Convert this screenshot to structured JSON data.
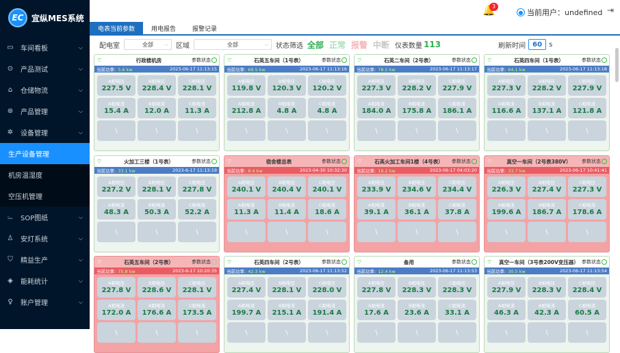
{
  "app": {
    "title": "宜纵MES系统",
    "logo_text": "EC"
  },
  "sidebar": {
    "items": [
      {
        "label": "车间看板",
        "icon": "monitor-icon",
        "glyph": "▭"
      },
      {
        "label": "产品测试",
        "icon": "check-circle-icon",
        "glyph": "⊙"
      },
      {
        "label": "仓储物流",
        "icon": "warehouse-icon",
        "glyph": "⌂"
      },
      {
        "label": "产品管理",
        "icon": "product-icon",
        "glyph": "⊛"
      },
      {
        "label": "设备管理",
        "icon": "gear-icon",
        "glyph": "✲"
      }
    ],
    "subitems": [
      {
        "label": "生产设备管理",
        "active": true
      },
      {
        "label": "机房温湿度"
      },
      {
        "label": "空压机管理"
      }
    ],
    "items2": [
      {
        "label": "SOP图纸",
        "icon": "drawing-icon",
        "glyph": "⌳"
      },
      {
        "label": "安灯系统",
        "icon": "andon-icon",
        "glyph": "♙"
      },
      {
        "label": "精益生产",
        "icon": "shield-icon",
        "glyph": "⛉"
      },
      {
        "label": "能耗统计",
        "icon": "energy-icon",
        "glyph": "◈"
      },
      {
        "label": "账户管理",
        "icon": "user-icon",
        "glyph": "♀"
      }
    ]
  },
  "header": {
    "notification_count": "3",
    "user_label": "当前用户：undefined",
    "logout_icon": "logout-icon"
  },
  "tabs": [
    "电表当前参数",
    "用电报告",
    "报警记录"
  ],
  "filters": {
    "room_label": "配电室",
    "room_value": "全部",
    "area_label": "区域",
    "area_value": "全部",
    "status_label": "状态筛选",
    "status_all": "全部",
    "status_normal": "正常",
    "status_alarm": "报警",
    "status_interrupt": "中断",
    "count_label": "仪表数量",
    "count_value": "113",
    "refresh_label": "刷新时间",
    "refresh_value": "60",
    "refresh_unit": "s"
  },
  "card_labels": {
    "status": "参数状态",
    "power": "当前功率:",
    "va": "A相电压",
    "vb": "B相电压",
    "vc": "C相电压",
    "ia": "A相电流",
    "ib": "B相电流",
    "ic": "C相电流"
  },
  "colors": {
    "normal_value": "#1b7a45",
    "alarm_bg": "#f4a3a5",
    "primary": "#1f6fbf"
  },
  "cards": [
    {
      "name": "行政楼机房",
      "power": "5.6 kw",
      "time": "2023-06-17 11:13:15",
      "va": "227.5 V",
      "vb": "228.4 V",
      "vc": "228.1 V",
      "ia": "15.4 A",
      "ib": "12.0 A",
      "ic": "11.3 A",
      "alarm": false
    },
    {
      "name": "石英五车间（1号表）",
      "power": "69.5 kw",
      "time": "2023-06-17 11:13:16",
      "va": "119.8 V",
      "vb": "120.3 V",
      "vc": "120.2 V",
      "ia": "212.8 A",
      "ib": "4.8 A",
      "ic": "4.8 A",
      "alarm": false
    },
    {
      "name": "石英二车间（2号表）",
      "power": "78.5 kw",
      "time": "2023-06-17 11:13:17",
      "va": "227.3 V",
      "vb": "228.2 V",
      "vc": "227.9 V",
      "ia": "184.0 A",
      "ib": "175.8 A",
      "ic": "186.1 A",
      "alarm": false
    },
    {
      "name": "石英四车间（1号表）",
      "power": "64.1 kw",
      "time": "2023-06-17 11:13:18",
      "va": "227.3 V",
      "vb": "228.2 V",
      "vc": "227.9 V",
      "ia": "116.6 A",
      "ib": "137.1 A",
      "ic": "121.8 A",
      "alarm": false
    },
    {
      "name": "火加工三楼（1号表）",
      "power": "33.1 kw",
      "time": "2023-6-17 11:13:19",
      "va": "227.2 V",
      "vb": "228.1 V",
      "vc": "227.8 V",
      "ia": "48.3 A",
      "ib": "50.3 A",
      "ic": "52.2 A",
      "alarm": false
    },
    {
      "name": "宿舍楼总表",
      "power": "8.4 kw",
      "time": "2023-04-30 10:32:30",
      "va": "240.1 V",
      "vb": "240.4 V",
      "vc": "240.1 V",
      "ia": "11.3 A",
      "ib": "11.4 A",
      "ic": "18.6 A",
      "alarm": true
    },
    {
      "name": "石英火加工车间1楼（4号表）",
      "power": "19.2 kw",
      "time": "2023-06-17 04:03:20",
      "va": "233.9 V",
      "vb": "234.6 V",
      "vc": "234.4 V",
      "ia": "39.1 A",
      "ib": "36.1 A",
      "ic": "37.8 A",
      "alarm": true
    },
    {
      "name": "真空一车间（2号表380V）",
      "power": "33.7 kw",
      "time": "2023-06-17 10:41:41",
      "va": "226.3 V",
      "vb": "227.4 V",
      "vc": "227.3 V",
      "ia": "199.6 A",
      "ib": "186.7 A",
      "ic": "178.6 A",
      "alarm": true
    },
    {
      "name": "石英五车间（2号表）",
      "power": "75.8 kw",
      "time": "2023-6-17 10:20:35",
      "va": "227.8 V",
      "vb": "228.6 V",
      "vc": "228.1 V",
      "ia": "172.0 A",
      "ib": "176.6 A",
      "ic": "173.5 A",
      "alarm": true
    },
    {
      "name": "石英四车间（2号表）",
      "power": "42.3 kw",
      "time": "2023-06-17 11:13:52",
      "va": "227.4 V",
      "vb": "228.1 V",
      "vc": "228.0 V",
      "ia": "199.7 A",
      "ib": "215.1 A",
      "ic": "191.4 A",
      "alarm": false
    },
    {
      "name": "备用",
      "power": "12.4 kw",
      "time": "2023-06-17 11:13:53",
      "va": "227.8 V",
      "vb": "228.3 V",
      "vc": "228.3 V",
      "ia": "17.6 A",
      "ib": "23.6 A",
      "ic": "33.1 A",
      "alarm": false
    },
    {
      "name": "真空一车间（3号表200V变压器）",
      "power": "30.5 kw",
      "time": "2023-06-17 11:13:54",
      "va": "227.9 V",
      "vb": "228.3 V",
      "vc": "228.4 V",
      "ia": "46.3 A",
      "ib": "42.3 A",
      "ic": "60.5 A",
      "alarm": false
    }
  ]
}
